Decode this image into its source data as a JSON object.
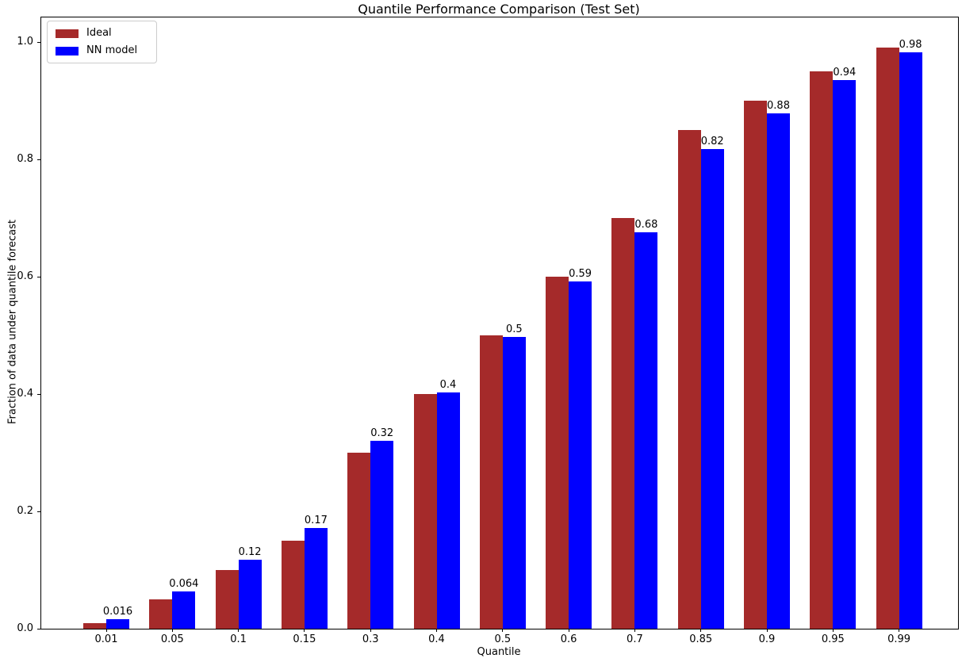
{
  "chart_data": {
    "type": "bar",
    "title": "Quantile Performance Comparison (Test Set)",
    "xlabel": "Quantile",
    "ylabel": "Fraction of data under quantile forecast",
    "categories": [
      "0.01",
      "0.05",
      "0.1",
      "0.15",
      "0.3",
      "0.4",
      "0.5",
      "0.6",
      "0.7",
      "0.85",
      "0.9",
      "0.95",
      "0.99"
    ],
    "series": [
      {
        "name": "Ideal",
        "color": "#A52A2A",
        "values": [
          0.01,
          0.05,
          0.1,
          0.15,
          0.3,
          0.4,
          0.5,
          0.6,
          0.7,
          0.85,
          0.9,
          0.95,
          0.99
        ]
      },
      {
        "name": "NN model",
        "color": "#0000FF",
        "values": [
          0.016,
          0.064,
          0.118,
          0.171,
          0.32,
          0.403,
          0.497,
          0.592,
          0.676,
          0.818,
          0.879,
          0.935,
          0.983
        ],
        "bar_labels": [
          "0.016",
          "0.064",
          "0.12",
          "0.17",
          "0.32",
          "0.4",
          "0.5",
          "0.59",
          "0.68",
          "0.82",
          "0.88",
          "0.94",
          "0.98"
        ]
      }
    ],
    "yticks": [
      "0.0",
      "0.2",
      "0.4",
      "0.6",
      "0.8",
      "1.0"
    ],
    "ylim": [
      0.0,
      1.042
    ],
    "grid": false,
    "legend_position": "upper left",
    "background_color": "#ffffff",
    "text_color": "#000000"
  }
}
